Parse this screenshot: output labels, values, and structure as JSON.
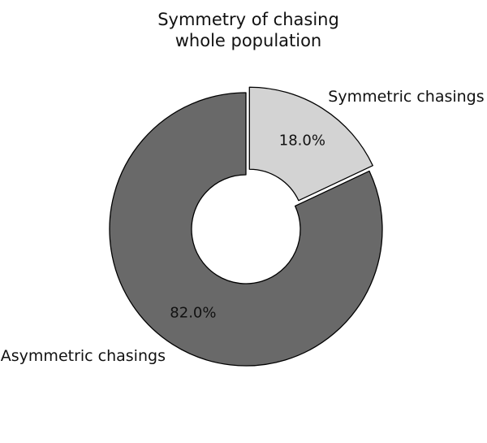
{
  "chart_data": {
    "type": "pie",
    "style": "donut",
    "title": [
      "Symmetry of chasing",
      "whole population"
    ],
    "slices": [
      {
        "label": "Symmetric chasings",
        "value": 18.0,
        "display": "18.0%",
        "color": "#d3d3d3",
        "exploded": true
      },
      {
        "label": "Asymmetric chasings",
        "value": 82.0,
        "display": "82.0%",
        "color": "#696969",
        "exploded": false
      }
    ],
    "start_angle": "top, clockwise",
    "edge_color": "#000000",
    "legend": "none"
  }
}
